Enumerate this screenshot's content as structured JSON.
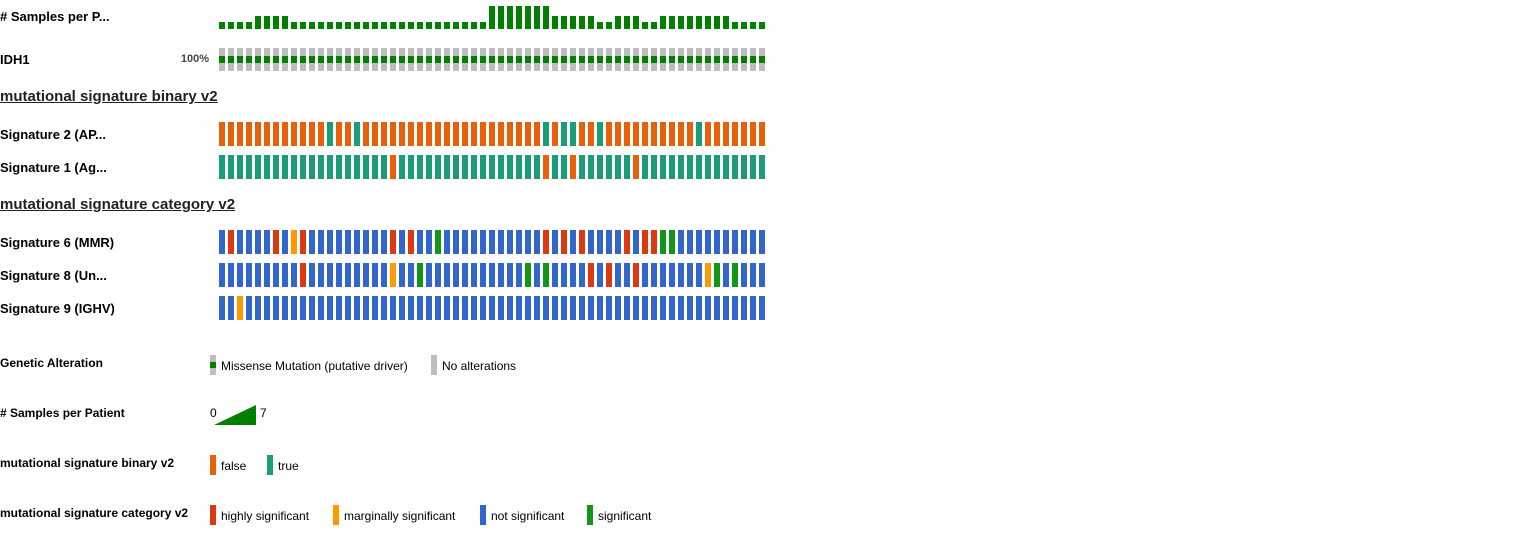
{
  "chart_data": {
    "type": "heatmap",
    "num_columns": 61,
    "colors": {
      "samples": "#008000",
      "no_alteration": "#bebebe",
      "missense": "#008000",
      "binary_false": "#e8600a",
      "binary_true": "#1b9e77",
      "highly_significant": "#dc3912",
      "marginally_significant": "#ff9900",
      "not_significant": "#3366cc",
      "significant": "#109618"
    },
    "tracks": {
      "samples": {
        "label": "# Samples per P...",
        "range": [
          0,
          7
        ],
        "values": [
          1,
          1,
          1,
          1,
          2,
          2,
          2,
          2,
          1,
          1,
          1,
          1,
          1,
          1,
          1,
          1,
          1,
          1,
          1,
          1,
          1,
          1,
          1,
          1,
          1,
          1,
          1,
          1,
          1,
          1,
          4,
          4,
          4,
          4,
          4,
          4,
          4,
          2,
          2,
          2,
          2,
          2,
          1,
          1,
          2,
          2,
          2,
          1,
          1,
          2,
          2,
          2,
          2,
          2,
          2,
          2,
          2,
          1,
          1,
          1,
          1
        ]
      },
      "idh1": {
        "label": "IDH1",
        "percent": "100%",
        "values": [
          "m",
          "m",
          "m",
          "m",
          "m",
          "m",
          "m",
          "m",
          "m",
          "m",
          "m",
          "m",
          "m",
          "m",
          "m",
          "m",
          "m",
          "m",
          "m",
          "m",
          "m",
          "m",
          "m",
          "m",
          "m",
          "m",
          "m",
          "m",
          "m",
          "m",
          "m",
          "m",
          "m",
          "m",
          "m",
          "m",
          "m",
          "m",
          "m",
          "m",
          "m",
          "m",
          "m",
          "m",
          "m",
          "m",
          "m",
          "m",
          "m",
          "m",
          "m",
          "m",
          "m",
          "m",
          "m",
          "m",
          "m",
          "m",
          "m",
          "m",
          "m"
        ]
      }
    },
    "groups": [
      {
        "header": "mutational signature binary v2",
        "tracks": [
          {
            "id": "sig2",
            "label": "Signature 2 (AP...",
            "values": [
              "f",
              "f",
              "f",
              "f",
              "f",
              "f",
              "f",
              "f",
              "f",
              "f",
              "f",
              "f",
              "t",
              "f",
              "f",
              "t",
              "f",
              "f",
              "f",
              "f",
              "f",
              "f",
              "f",
              "f",
              "f",
              "f",
              "f",
              "f",
              "f",
              "f",
              "f",
              "f",
              "f",
              "f",
              "f",
              "f",
              "t",
              "f",
              "t",
              "t",
              "f",
              "f",
              "t",
              "f",
              "f",
              "f",
              "f",
              "f",
              "f",
              "f",
              "f",
              "f",
              "f",
              "t",
              "f",
              "f",
              "f",
              "f",
              "f",
              "f",
              "f"
            ]
          },
          {
            "id": "sig1",
            "label": "Signature 1 (Ag...",
            "values": [
              "t",
              "t",
              "t",
              "t",
              "t",
              "t",
              "t",
              "t",
              "t",
              "t",
              "t",
              "t",
              "t",
              "t",
              "t",
              "t",
              "t",
              "t",
              "t",
              "f",
              "t",
              "t",
              "t",
              "t",
              "t",
              "t",
              "t",
              "t",
              "t",
              "t",
              "t",
              "t",
              "t",
              "t",
              "t",
              "t",
              "f",
              "t",
              "t",
              "f",
              "t",
              "t",
              "t",
              "t",
              "t",
              "t",
              "f",
              "t",
              "t",
              "t",
              "t",
              "t",
              "t",
              "t",
              "t",
              "t",
              "t",
              "t",
              "t",
              "t",
              "t"
            ]
          }
        ]
      },
      {
        "header": "mutational signature category v2",
        "tracks": [
          {
            "id": "sig6",
            "label": "Signature 6 (MMR)",
            "values": [
              "n",
              "h",
              "n",
              "n",
              "n",
              "n",
              "h",
              "n",
              "m",
              "h",
              "n",
              "n",
              "n",
              "n",
              "n",
              "n",
              "n",
              "n",
              "n",
              "h",
              "n",
              "h",
              "n",
              "n",
              "s",
              "n",
              "n",
              "n",
              "n",
              "n",
              "n",
              "n",
              "n",
              "n",
              "n",
              "n",
              "h",
              "n",
              "h",
              "n",
              "h",
              "n",
              "n",
              "n",
              "n",
              "h",
              "n",
              "h",
              "h",
              "s",
              "s",
              "n",
              "n",
              "n",
              "n",
              "n",
              "n",
              "n",
              "n",
              "n",
              "n"
            ]
          },
          {
            "id": "sig8",
            "label": "Signature 8 (Un...",
            "values": [
              "n",
              "n",
              "n",
              "n",
              "n",
              "n",
              "n",
              "n",
              "n",
              "h",
              "n",
              "n",
              "n",
              "n",
              "n",
              "n",
              "n",
              "n",
              "n",
              "m",
              "n",
              "n",
              "s",
              "n",
              "n",
              "n",
              "n",
              "n",
              "n",
              "n",
              "n",
              "n",
              "n",
              "n",
              "s",
              "n",
              "s",
              "n",
              "n",
              "n",
              "n",
              "h",
              "n",
              "h",
              "n",
              "n",
              "h",
              "n",
              "n",
              "n",
              "n",
              "n",
              "n",
              "n",
              "m",
              "s",
              "n",
              "s",
              "n",
              "n",
              "n"
            ]
          },
          {
            "id": "sig9",
            "label": "Signature 9 (IGHV)",
            "values": [
              "n",
              "n",
              "m",
              "n",
              "n",
              "n",
              "n",
              "n",
              "n",
              "n",
              "n",
              "n",
              "n",
              "n",
              "n",
              "n",
              "n",
              "n",
              "n",
              "n",
              "n",
              "n",
              "n",
              "n",
              "n",
              "n",
              "n",
              "n",
              "n",
              "n",
              "n",
              "n",
              "n",
              "n",
              "n",
              "n",
              "n",
              "n",
              "n",
              "n",
              "n",
              "n",
              "n",
              "n",
              "n",
              "n",
              "n",
              "n",
              "n",
              "n",
              "n",
              "n",
              "n",
              "n",
              "n",
              "n",
              "n",
              "n",
              "n",
              "n",
              "n"
            ]
          }
        ]
      }
    ],
    "legend": {
      "genetic": {
        "title": "Genetic Alteration",
        "missense": "Missense Mutation (putative driver)",
        "none": "No alterations"
      },
      "samples": {
        "title": "# Samples per Patient",
        "min": "0",
        "max": "7"
      },
      "binary": {
        "title": "mutational signature binary v2",
        "false": "false",
        "true": "true"
      },
      "category": {
        "title": "mutational signature category v2",
        "highly": "highly significant",
        "marginally": "marginally significant",
        "not": "not significant",
        "significant": "significant"
      }
    }
  }
}
